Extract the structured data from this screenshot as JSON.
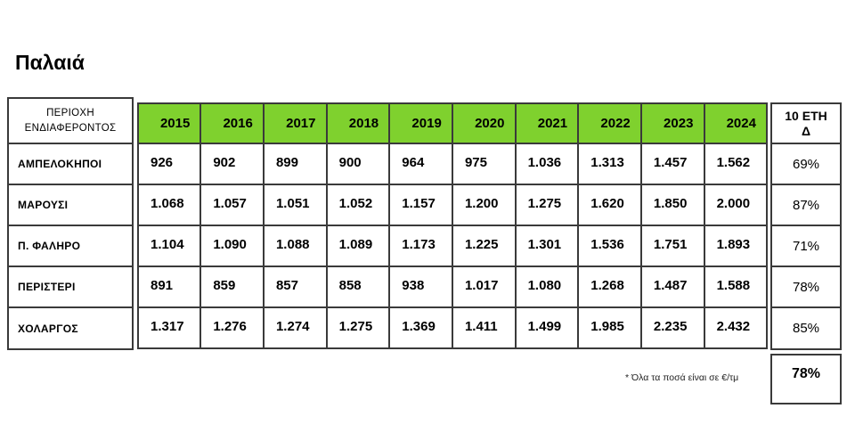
{
  "title": "Παλαιά",
  "header": {
    "region_line1": "ΠΕΡΙΟΧΗ",
    "region_line2": "ΕΝΔΙΑΦΕΡΟΝΤΟΣ",
    "years": [
      "2015",
      "2016",
      "2017",
      "2018",
      "2019",
      "2020",
      "2021",
      "2022",
      "2023",
      "2024"
    ],
    "change_line1": "10 ΕΤΗ",
    "change_line2": "Δ"
  },
  "rows": [
    {
      "region": "ΑΜΠΕΛΟΚΗΠΟΙ",
      "values": [
        "926",
        "902",
        "899",
        "900",
        "964",
        "975",
        "1.036",
        "1.313",
        "1.457",
        "1.562"
      ],
      "change": "69%"
    },
    {
      "region": "ΜΑΡΟΥΣΙ",
      "values": [
        "1.068",
        "1.057",
        "1.051",
        "1.052",
        "1.157",
        "1.200",
        "1.275",
        "1.620",
        "1.850",
        "2.000"
      ],
      "change": "87%"
    },
    {
      "region": "Π. ΦΑΛΗΡΟ",
      "values": [
        "1.104",
        "1.090",
        "1.088",
        "1.089",
        "1.173",
        "1.225",
        "1.301",
        "1.536",
        "1.751",
        "1.893"
      ],
      "change": "71%"
    },
    {
      "region": "ΠΕΡΙΣΤΕΡΙ",
      "values": [
        "891",
        "859",
        "857",
        "858",
        "938",
        "1.017",
        "1.080",
        "1.268",
        "1.487",
        "1.588"
      ],
      "change": "78%"
    },
    {
      "region": "ΧΟΛΑΡΓΟΣ",
      "values": [
        "1.317",
        "1.276",
        "1.274",
        "1.275",
        "1.369",
        "1.411",
        "1.499",
        "1.985",
        "2.235",
        "2.432"
      ],
      "change": "85%"
    }
  ],
  "total_change": "78%",
  "note": "* Όλα τα ποσά είναι σε €/τμ",
  "colors": {
    "header_green": "#7fd12e",
    "border": "#3a3a3a"
  }
}
